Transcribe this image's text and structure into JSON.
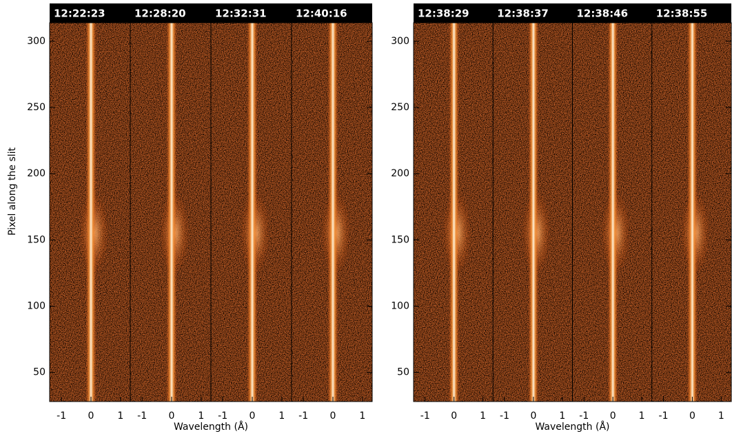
{
  "chart_data": [
    {
      "type": "spectra",
      "frames": [
        "12:22:23",
        "12:28:20",
        "12:32:31",
        "12:40:16"
      ],
      "ylabel": "Pixel along the slit",
      "xlabel": "Wavelength (Å)",
      "xlim": [
        -1.4,
        1.33
      ],
      "xticks": [
        -1,
        0,
        1
      ],
      "ylim": [
        28,
        314
      ],
      "yticks": [
        50,
        100,
        150,
        200,
        250,
        300
      ]
    },
    {
      "type": "spectra",
      "frames": [
        "12:38:29",
        "12:38:37",
        "12:38:46",
        "12:38:55"
      ],
      "xlabel": "Wavelength (Å)",
      "xlim": [
        -1.4,
        1.35
      ],
      "xticks": [
        -1,
        0,
        1
      ],
      "ylim": [
        28,
        314
      ],
      "yticks": [
        50,
        100,
        150,
        200,
        250,
        300
      ]
    }
  ]
}
